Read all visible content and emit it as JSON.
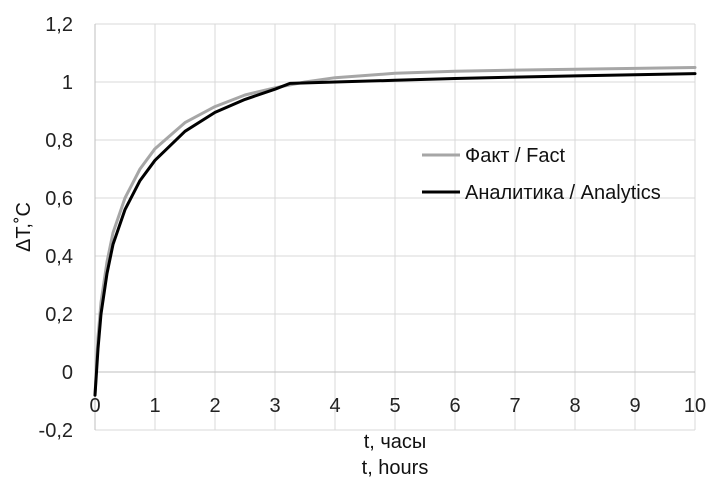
{
  "chart_data": {
    "type": "line",
    "xlabel_lines": [
      "t, часы",
      "t, hours"
    ],
    "ylabel": "ΔT,˚C",
    "xlim": [
      0,
      10
    ],
    "ylim": [
      -0.2,
      1.2
    ],
    "x_ticks": [
      0,
      1,
      2,
      3,
      4,
      5,
      6,
      7,
      8,
      9,
      10
    ],
    "x_tick_labels": [
      "0",
      "1",
      "2",
      "3",
      "4",
      "5",
      "6",
      "7",
      "8",
      "9",
      "10"
    ],
    "y_ticks": [
      -0.2,
      0,
      0.2,
      0.4,
      0.6,
      0.8,
      1.0,
      1.2
    ],
    "y_tick_labels": [
      "-0,2",
      "0",
      "0,2",
      "0,4",
      "0,6",
      "0,8",
      "1",
      "1,2"
    ],
    "grid": true,
    "legend_position": "right",
    "series": [
      {
        "name": "Факт / Fact",
        "color": "#a6a6a6",
        "x": [
          0,
          0.05,
          0.1,
          0.2,
          0.3,
          0.5,
          0.75,
          1.0,
          1.5,
          2.0,
          2.5,
          3.0,
          3.5,
          4.0,
          5.0,
          6.0,
          7.0,
          8.0,
          9.0,
          10.0
        ],
        "y": [
          -0.08,
          0.12,
          0.24,
          0.38,
          0.48,
          0.6,
          0.7,
          0.77,
          0.86,
          0.915,
          0.955,
          0.98,
          1.0,
          1.015,
          1.03,
          1.037,
          1.041,
          1.044,
          1.047,
          1.05
        ]
      },
      {
        "name": "Аналитика / Analytics",
        "color": "#000000",
        "x": [
          0,
          0.05,
          0.1,
          0.2,
          0.3,
          0.5,
          0.75,
          1.0,
          1.5,
          2.0,
          2.5,
          3.0,
          3.25,
          4.0,
          5.0,
          6.0,
          7.0,
          8.0,
          9.0,
          10.0
        ],
        "y": [
          -0.08,
          0.08,
          0.2,
          0.34,
          0.44,
          0.56,
          0.66,
          0.73,
          0.83,
          0.895,
          0.94,
          0.975,
          0.995,
          1.0,
          1.006,
          1.012,
          1.017,
          1.021,
          1.025,
          1.029
        ]
      }
    ]
  }
}
